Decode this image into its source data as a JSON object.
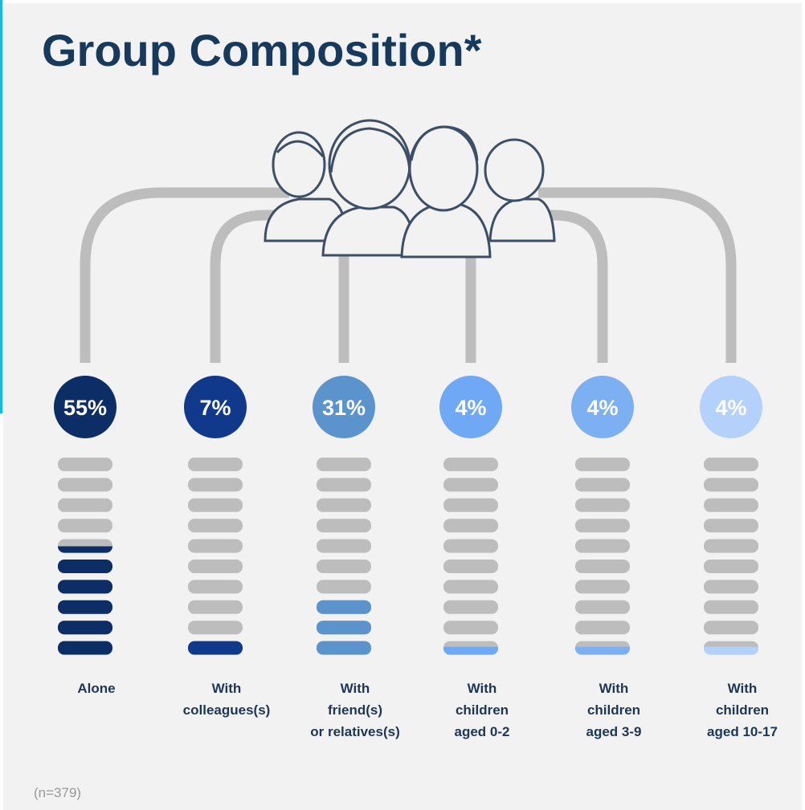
{
  "chart_data": {
    "type": "pictogram",
    "title": "Group Composition*",
    "categories": [
      "Alone",
      "With\ncolleagues(s)",
      "With\nfriend(s)\nor relatives(s)",
      "With\nchildren\naged 0-2",
      "With\nchildren\naged 3-9",
      "With\nchildren\naged 10-17"
    ],
    "values": [
      55,
      7,
      31,
      4,
      4,
      4
    ],
    "value_labels": [
      "55%",
      "7%",
      "31%",
      "4%",
      "4%",
      "4%"
    ],
    "colors": [
      "#0d2d66",
      "#10398c",
      "#5b93cc",
      "#6fa8f5",
      "#7cb0f2",
      "#b3d1fa"
    ],
    "ylim": [
      0,
      100
    ],
    "note": "(n=379)"
  }
}
